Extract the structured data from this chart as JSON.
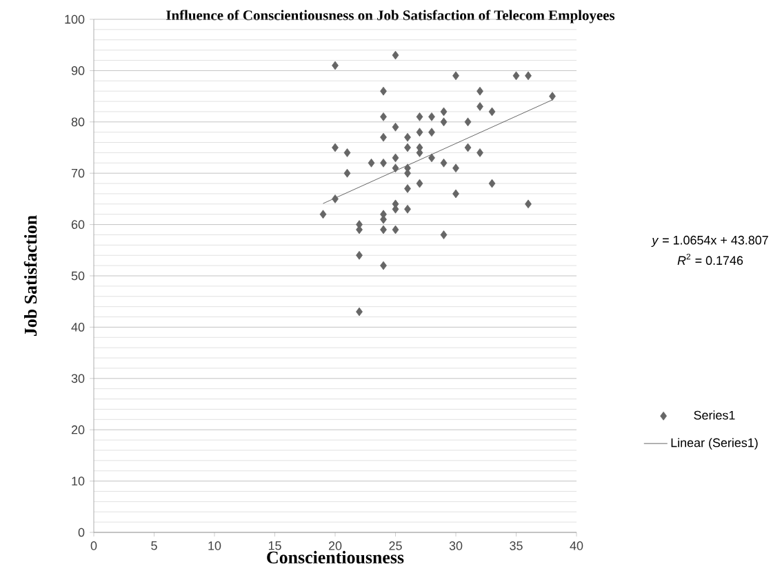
{
  "chart_data": {
    "type": "scatter",
    "title": "Influence of Conscientiousness on Job Satisfaction of Telecom Employees",
    "xlabel": "Conscientiousness",
    "ylabel": "Job Satisfaction",
    "xlim": [
      0,
      40
    ],
    "xticks": [
      0,
      5,
      10,
      15,
      20,
      25,
      30,
      35,
      40
    ],
    "ylim": [
      0,
      100
    ],
    "yticks": [
      0,
      10,
      20,
      30,
      40,
      50,
      60,
      70,
      80,
      90,
      100
    ],
    "grid": "y",
    "legend": "right",
    "marker": "diamond",
    "annotations": [
      "*y* = 1.0654x + 43.807",
      "*R*$^{2}$ = 0.1746"
    ],
    "series": [
      {
        "name": "Series1",
        "color": "#666666",
        "x": [
          20,
          25,
          24,
          30,
          35,
          36,
          38,
          32,
          32,
          33,
          24,
          27,
          28,
          29,
          29,
          31,
          25,
          28,
          27,
          26,
          24,
          20,
          21,
          26,
          27,
          27,
          28,
          25,
          31,
          32,
          29,
          30,
          23,
          24,
          25,
          26,
          26,
          21,
          27,
          33,
          26,
          30,
          20,
          19,
          22,
          22,
          24,
          24,
          24,
          25,
          25,
          26,
          25,
          36,
          29,
          22,
          24,
          22
        ],
        "values": [
          91,
          93,
          86,
          89,
          89,
          89,
          85,
          86,
          83,
          82,
          81,
          81,
          81,
          82,
          80,
          80,
          79,
          78,
          78,
          77,
          77,
          75,
          74,
          75,
          75,
          74,
          73,
          73,
          75,
          74,
          72,
          71,
          72,
          72,
          71,
          71,
          70,
          70,
          68,
          68,
          67,
          66,
          65,
          62,
          60,
          59,
          62,
          61,
          59,
          64,
          63,
          63,
          59,
          64,
          58,
          54,
          52,
          43
        ]
      },
      {
        "name": "Linear (Series1)",
        "type": "line",
        "color": "#404040",
        "marker": "none",
        "x": [
          19,
          38
        ],
        "values": [
          64.1,
          84.3
        ]
      }
    ]
  }
}
